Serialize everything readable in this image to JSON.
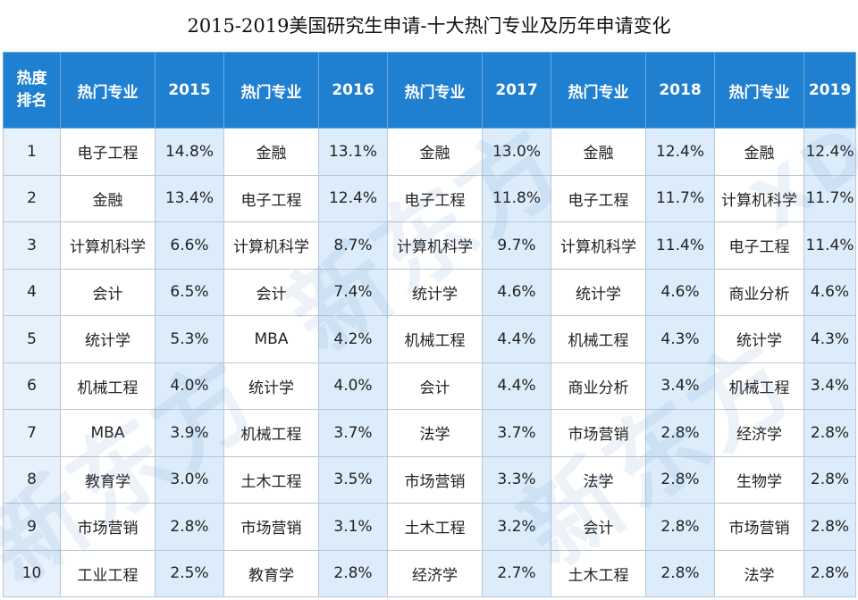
{
  "title": "2015-2019美国研究生申请-十大热门专业及历年申请变化",
  "header": {
    "rank_line1": "热度",
    "rank_line2": "排名",
    "major_label": "热门专业",
    "years": [
      "2015",
      "2016",
      "2017",
      "2018",
      "2019"
    ]
  },
  "rows": [
    {
      "rank": "1",
      "cells": [
        [
          "电子工程",
          "14.8%"
        ],
        [
          "金融",
          "13.1%"
        ],
        [
          "金融",
          "13.0%"
        ],
        [
          "金融",
          "12.4%"
        ],
        [
          "金融",
          "12.4%"
        ]
      ]
    },
    {
      "rank": "2",
      "cells": [
        [
          "金融",
          "13.4%"
        ],
        [
          "电子工程",
          "12.4%"
        ],
        [
          "电子工程",
          "11.8%"
        ],
        [
          "电子工程",
          "11.7%"
        ],
        [
          "计算机科学",
          "11.7%"
        ]
      ]
    },
    {
      "rank": "3",
      "cells": [
        [
          "计算机科学",
          "6.6%"
        ],
        [
          "计算机科学",
          "8.7%"
        ],
        [
          "计算机科学",
          "9.7%"
        ],
        [
          "计算机科学",
          "11.4%"
        ],
        [
          "电子工程",
          "11.4%"
        ]
      ]
    },
    {
      "rank": "4",
      "cells": [
        [
          "会计",
          "6.5%"
        ],
        [
          "会计",
          "7.4%"
        ],
        [
          "统计学",
          "4.6%"
        ],
        [
          "统计学",
          "4.6%"
        ],
        [
          "商业分析",
          "4.6%"
        ]
      ]
    },
    {
      "rank": "5",
      "cells": [
        [
          "统计学",
          "5.3%"
        ],
        [
          "MBA",
          "4.2%"
        ],
        [
          "机械工程",
          "4.4%"
        ],
        [
          "机械工程",
          "4.3%"
        ],
        [
          "统计学",
          "4.3%"
        ]
      ]
    },
    {
      "rank": "6",
      "cells": [
        [
          "机械工程",
          "4.0%"
        ],
        [
          "统计学",
          "4.0%"
        ],
        [
          "会计",
          "4.4%"
        ],
        [
          "商业分析",
          "3.4%"
        ],
        [
          "机械工程",
          "3.4%"
        ]
      ]
    },
    {
      "rank": "7",
      "cells": [
        [
          "MBA",
          "3.9%"
        ],
        [
          "机械工程",
          "3.7%"
        ],
        [
          "法学",
          "3.7%"
        ],
        [
          "市场营销",
          "2.8%"
        ],
        [
          "经济学",
          "2.8%"
        ]
      ]
    },
    {
      "rank": "8",
      "cells": [
        [
          "教育学",
          "3.0%"
        ],
        [
          "土木工程",
          "3.5%"
        ],
        [
          "市场营销",
          "3.3%"
        ],
        [
          "法学",
          "2.8%"
        ],
        [
          "生物学",
          "2.8%"
        ]
      ]
    },
    {
      "rank": "9",
      "cells": [
        [
          "市场营销",
          "2.8%"
        ],
        [
          "市场营销",
          "3.1%"
        ],
        [
          "土木工程",
          "3.2%"
        ],
        [
          "会计",
          "2.8%"
        ],
        [
          "市场营销",
          "2.8%"
        ]
      ]
    },
    {
      "rank": "10",
      "cells": [
        [
          "工业工程",
          "2.5%"
        ],
        [
          "教育学",
          "2.8%"
        ],
        [
          "经济学",
          "2.7%"
        ],
        [
          "土木工程",
          "2.8%"
        ],
        [
          "法学",
          "2.8%"
        ]
      ]
    }
  ],
  "colors": {
    "header_bg": "#1f7fd1",
    "header_text": "#ffffff",
    "pct_bg": "#dcecfa",
    "rank_bg": "#e6f1fb"
  }
}
